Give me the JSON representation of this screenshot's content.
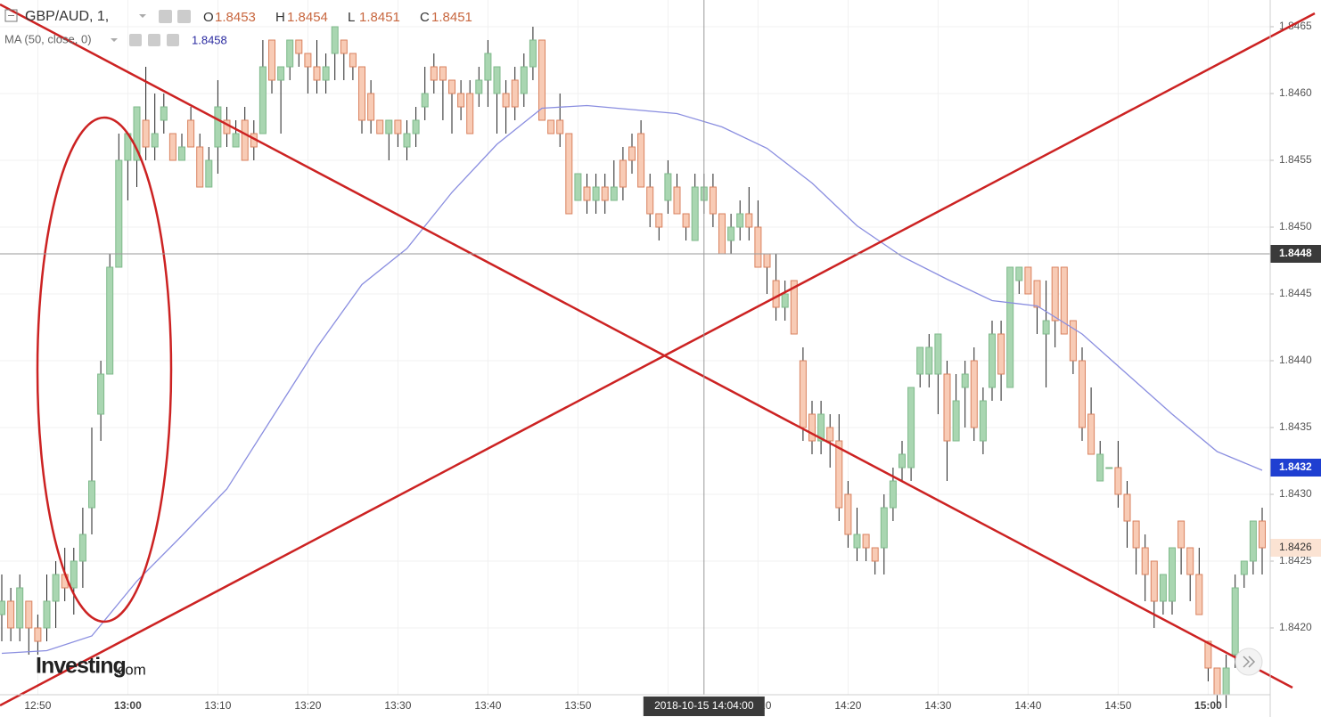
{
  "chart_data": {
    "type": "candlestick",
    "title": "GBP/AUD, 1,",
    "legend_ohlc": [
      {
        "label": "O",
        "value": 1.8453
      },
      {
        "label": "H",
        "value": 1.8454
      },
      {
        "label": "L",
        "value": 1.8451
      },
      {
        "label": "C",
        "value": 1.8451
      }
    ],
    "x": [
      "12:46",
      "12:47",
      "12:48",
      "12:49",
      "12:50",
      "12:51",
      "12:52",
      "12:53",
      "12:54",
      "12:55",
      "12:56",
      "12:57",
      "12:58",
      "12:59",
      "13:00",
      "13:01",
      "13:02",
      "13:03",
      "13:04",
      "13:05",
      "13:06",
      "13:07",
      "13:08",
      "13:09",
      "13:10",
      "13:11",
      "13:12",
      "13:13",
      "13:14",
      "13:15",
      "13:16",
      "13:17",
      "13:18",
      "13:19",
      "13:20",
      "13:21",
      "13:22",
      "13:23",
      "13:24",
      "13:25",
      "13:26",
      "13:27",
      "13:28",
      "13:29",
      "13:30",
      "13:31",
      "13:32",
      "13:33",
      "13:34",
      "13:35",
      "13:36",
      "13:37",
      "13:38",
      "13:39",
      "13:40",
      "13:41",
      "13:42",
      "13:43",
      "13:44",
      "13:45",
      "13:46",
      "13:47",
      "13:48",
      "13:49",
      "13:50",
      "13:51",
      "13:52",
      "13:53",
      "13:54",
      "13:55",
      "13:56",
      "13:57",
      "13:58",
      "13:59",
      "14:00",
      "14:01",
      "14:02",
      "14:03",
      "14:04",
      "14:05",
      "14:06",
      "14:07",
      "14:08",
      "14:09",
      "14:10",
      "14:11",
      "14:12",
      "14:13",
      "14:14",
      "14:15",
      "14:16",
      "14:17",
      "14:18",
      "14:19",
      "14:20",
      "14:21",
      "14:22",
      "14:23",
      "14:24",
      "14:25",
      "14:26",
      "14:27",
      "14:28",
      "14:29",
      "14:30",
      "14:31",
      "14:32",
      "14:33",
      "14:34",
      "14:35",
      "14:36",
      "14:37",
      "14:38",
      "14:39",
      "14:40",
      "14:41",
      "14:42",
      "14:43",
      "14:44",
      "14:45",
      "14:46",
      "14:47",
      "14:48",
      "14:49",
      "14:50",
      "14:51",
      "14:52",
      "14:53",
      "14:54",
      "14:55",
      "14:56",
      "14:57",
      "14:58",
      "14:59",
      "15:00",
      "15:01",
      "15:02",
      "15:03",
      "15:04",
      "15:05",
      "15:06"
    ],
    "open": [
      1.8421,
      1.8422,
      1.842,
      1.8422,
      1.842,
      1.842,
      1.8422,
      1.8424,
      1.8423,
      1.8425,
      1.8429,
      1.8436,
      1.8439,
      1.8447,
      1.8455,
      1.8455,
      1.8458,
      1.8456,
      1.8458,
      1.8457,
      1.8455,
      1.8458,
      1.8456,
      1.8453,
      1.8456,
      1.8458,
      1.8456,
      1.8458,
      1.8457,
      1.8457,
      1.8464,
      1.8461,
      1.8462,
      1.8464,
      1.8463,
      1.8462,
      1.8461,
      1.8463,
      1.8464,
      1.8463,
      1.8462,
      1.846,
      1.8458,
      1.8457,
      1.8458,
      1.8456,
      1.8457,
      1.8459,
      1.8462,
      1.8462,
      1.8461,
      1.846,
      1.846,
      1.846,
      1.8461,
      1.846,
      1.846,
      1.8461,
      1.846,
      1.8462,
      1.8464,
      1.8458,
      1.8458,
      1.8457,
      1.8452,
      1.8453,
      1.8452,
      1.8453,
      1.8452,
      1.8455,
      1.8456,
      1.8457,
      1.8453,
      1.8451,
      1.8452,
      1.8453,
      1.8451,
      1.8449,
      1.8452,
      1.8453,
      1.8451,
      1.8449,
      1.845,
      1.8451,
      1.845,
      1.8448,
      1.8446,
      1.8444,
      1.8446,
      1.844,
      1.8436,
      1.8434,
      1.8435,
      1.8434,
      1.843,
      1.8426,
      1.8427,
      1.8426,
      1.8426,
      1.8429,
      1.8432,
      1.8432,
      1.8439,
      1.8439,
      1.8439,
      1.8439,
      1.8434,
      1.8438,
      1.844,
      1.8434,
      1.8438,
      1.8442,
      1.8438,
      1.8446,
      1.8447,
      1.8446,
      1.8442,
      1.8447,
      1.8447,
      1.8443,
      1.844,
      1.8436,
      1.8431,
      1.8432,
      1.8432,
      1.843,
      1.8428,
      1.8426,
      1.8425,
      1.8422,
      1.8422,
      1.8428,
      1.8426,
      1.8424,
      1.8419,
      1.8417,
      1.8415,
      1.8418,
      1.8424,
      1.8425,
      1.8428
    ],
    "high": [
      1.8424,
      1.8423,
      1.8424,
      1.8422,
      1.8421,
      1.8424,
      1.8425,
      1.8426,
      1.8426,
      1.8429,
      1.8435,
      1.844,
      1.8448,
      1.8457,
      1.8457,
      1.8459,
      1.8462,
      1.846,
      1.846,
      1.8457,
      1.8457,
      1.8459,
      1.8457,
      1.8456,
      1.8461,
      1.8459,
      1.8458,
      1.8459,
      1.8458,
      1.8464,
      1.8464,
      1.8462,
      1.8464,
      1.8464,
      1.8463,
      1.8464,
      1.8463,
      1.8465,
      1.8464,
      1.8463,
      1.8462,
      1.8461,
      1.8458,
      1.8458,
      1.8458,
      1.8458,
      1.8459,
      1.8462,
      1.8463,
      1.8462,
      1.8461,
      1.8461,
      1.8461,
      1.8462,
      1.8464,
      1.8462,
      1.8461,
      1.8462,
      1.8463,
      1.8465,
      1.8464,
      1.8458,
      1.846,
      1.8457,
      1.8454,
      1.8454,
      1.8454,
      1.8454,
      1.8455,
      1.8456,
      1.8457,
      1.8458,
      1.8454,
      1.8451,
      1.8455,
      1.8454,
      1.8451,
      1.8454,
      1.8454,
      1.8454,
      1.8451,
      1.8451,
      1.8452,
      1.8453,
      1.8452,
      1.8448,
      1.8448,
      1.8446,
      1.8446,
      1.8441,
      1.8437,
      1.8437,
      1.8436,
      1.8436,
      1.8431,
      1.8429,
      1.8427,
      1.8426,
      1.843,
      1.8432,
      1.8434,
      1.8438,
      1.8441,
      1.8442,
      1.8442,
      1.844,
      1.8439,
      1.844,
      1.8441,
      1.8438,
      1.8443,
      1.8443,
      1.8447,
      1.8447,
      1.8447,
      1.8446,
      1.8446,
      1.8447,
      1.8447,
      1.8443,
      1.8441,
      1.8438,
      1.8434,
      1.8432,
      1.8434,
      1.8431,
      1.8428,
      1.8427,
      1.8425,
      1.8424,
      1.8426,
      1.8428,
      1.8426,
      1.8426,
      1.8419,
      1.8417,
      1.8418,
      1.8424,
      1.8425,
      1.8428,
      1.8429
    ],
    "low": [
      1.8419,
      1.8419,
      1.8419,
      1.8418,
      1.8418,
      1.8419,
      1.842,
      1.8422,
      1.8421,
      1.8423,
      1.8427,
      1.8434,
      1.8439,
      1.8447,
      1.8452,
      1.8453,
      1.8455,
      1.8455,
      1.8457,
      1.8455,
      1.8455,
      1.8456,
      1.8453,
      1.8453,
      1.8454,
      1.8456,
      1.8456,
      1.8455,
      1.8455,
      1.8457,
      1.846,
      1.8457,
      1.8461,
      1.8462,
      1.846,
      1.846,
      1.846,
      1.8461,
      1.8461,
      1.8461,
      1.8457,
      1.8457,
      1.8457,
      1.8455,
      1.8456,
      1.8455,
      1.8456,
      1.8458,
      1.846,
      1.8458,
      1.8457,
      1.8458,
      1.8457,
      1.8459,
      1.8459,
      1.8457,
      1.8457,
      1.8458,
      1.8459,
      1.8461,
      1.8458,
      1.8457,
      1.8456,
      1.8451,
      1.8452,
      1.8451,
      1.8451,
      1.8451,
      1.8452,
      1.8452,
      1.8454,
      1.8453,
      1.845,
      1.8449,
      1.8451,
      1.8451,
      1.8449,
      1.8449,
      1.8451,
      1.845,
      1.8448,
      1.8448,
      1.8449,
      1.8449,
      1.8447,
      1.8445,
      1.8443,
      1.8443,
      1.8442,
      1.8434,
      1.8433,
      1.8433,
      1.8432,
      1.8428,
      1.8426,
      1.8425,
      1.8425,
      1.8424,
      1.8424,
      1.8428,
      1.8431,
      1.8431,
      1.8438,
      1.8438,
      1.8436,
      1.8431,
      1.8434,
      1.8435,
      1.8434,
      1.8433,
      1.8437,
      1.8437,
      1.8438,
      1.8445,
      1.8445,
      1.8442,
      1.8438,
      1.8441,
      1.8442,
      1.8439,
      1.8434,
      1.8433,
      1.8431,
      1.8432,
      1.8429,
      1.8426,
      1.8424,
      1.8422,
      1.842,
      1.8421,
      1.8421,
      1.8424,
      1.8422,
      1.8421,
      1.8416,
      1.8414,
      1.8414,
      1.8417,
      1.8423,
      1.8424,
      1.8424
    ],
    "close": [
      1.8422,
      1.842,
      1.8423,
      1.842,
      1.8419,
      1.8422,
      1.8424,
      1.8423,
      1.8425,
      1.8427,
      1.8431,
      1.8439,
      1.8447,
      1.8455,
      1.8457,
      1.8459,
      1.8456,
      1.8457,
      1.8459,
      1.8455,
      1.8456,
      1.8456,
      1.8453,
      1.8455,
      1.8459,
      1.8457,
      1.8457,
      1.8455,
      1.8456,
      1.8462,
      1.8461,
      1.8462,
      1.8464,
      1.8463,
      1.8462,
      1.8461,
      1.8462,
      1.8465,
      1.8463,
      1.8462,
      1.8458,
      1.8458,
      1.8457,
      1.8458,
      1.8457,
      1.8457,
      1.8458,
      1.846,
      1.8461,
      1.8461,
      1.846,
      1.8459,
      1.8457,
      1.8461,
      1.8463,
      1.8462,
      1.8459,
      1.8459,
      1.8462,
      1.8464,
      1.8458,
      1.8457,
      1.8457,
      1.8451,
      1.8454,
      1.8452,
      1.8453,
      1.8452,
      1.8453,
      1.8453,
      1.8455,
      1.8453,
      1.8451,
      1.845,
      1.8454,
      1.8451,
      1.845,
      1.8453,
      1.8453,
      1.8451,
      1.8448,
      1.845,
      1.8451,
      1.845,
      1.8447,
      1.8447,
      1.8444,
      1.8445,
      1.8442,
      1.8435,
      1.8434,
      1.8436,
      1.8434,
      1.8429,
      1.8427,
      1.8427,
      1.8426,
      1.8425,
      1.8429,
      1.8431,
      1.8433,
      1.8438,
      1.8441,
      1.8441,
      1.8442,
      1.8434,
      1.8437,
      1.8439,
      1.8435,
      1.8437,
      1.8442,
      1.8439,
      1.8447,
      1.8447,
      1.8445,
      1.8444,
      1.8443,
      1.8443,
      1.8442,
      1.844,
      1.8435,
      1.8433,
      1.8433,
      1.8432,
      1.843,
      1.8428,
      1.8426,
      1.8424,
      1.8422,
      1.8424,
      1.8426,
      1.8426,
      1.8424,
      1.8421,
      1.8417,
      1.8415,
      1.8417,
      1.8423,
      1.8425,
      1.8428,
      1.8426
    ],
    "up_color": "#a9d6b1",
    "down_color": "#f8cbb5",
    "series": [
      {
        "name": "MA (50, close, 0)",
        "header_value": 1.8458,
        "color": "#8a8ee0",
        "x": [
          "12:46",
          "12:51",
          "12:56",
          "13:01",
          "13:06",
          "13:11",
          "13:16",
          "13:21",
          "13:26",
          "13:31",
          "13:36",
          "13:41",
          "13:46",
          "13:51",
          "13:56",
          "14:01",
          "14:06",
          "14:11",
          "14:16",
          "14:21",
          "14:26",
          "14:31",
          "14:36",
          "14:41",
          "14:46",
          "14:51",
          "14:56",
          "15:01",
          "15:06"
        ],
        "values": [
          1.84181,
          1.84183,
          1.84194,
          1.84235,
          1.84269,
          1.84304,
          1.84357,
          1.8441,
          1.84457,
          1.84484,
          1.84526,
          1.84562,
          1.84589,
          1.84591,
          1.84588,
          1.84585,
          1.84575,
          1.84559,
          1.84533,
          1.84501,
          1.84478,
          1.84461,
          1.84445,
          1.84441,
          1.8442,
          1.8439,
          1.8436,
          1.84332,
          1.84318
        ],
        "last_value": 1.8432
      }
    ],
    "last_price": 1.8426,
    "crosshair": {
      "price": 1.8448,
      "time": "2018-10-15 14:04:00"
    },
    "ylim": [
      1.8415,
      1.8467
    ],
    "yticks": [
      {
        "value": 1.842,
        "label": "1.8420"
      },
      1.8425,
      {
        "value": 1.843,
        "label": "1.8430"
      },
      1.8435,
      {
        "value": 1.844,
        "label": "1.8440"
      },
      1.8445,
      {
        "value": 1.845,
        "label": "1.8450"
      },
      1.8455,
      {
        "value": 1.846,
        "label": "1.8460"
      },
      1.8465
    ],
    "xticks": [
      "12:50",
      "13:00",
      "13:10",
      "13:20",
      "13:30",
      "13:40",
      "13:50",
      "14:00",
      "14:10",
      "14:20",
      "14:30",
      "14:40",
      "14:50",
      "15:00"
    ],
    "grid": true,
    "logo": "Investing",
    "logo_suffix": ".com"
  }
}
